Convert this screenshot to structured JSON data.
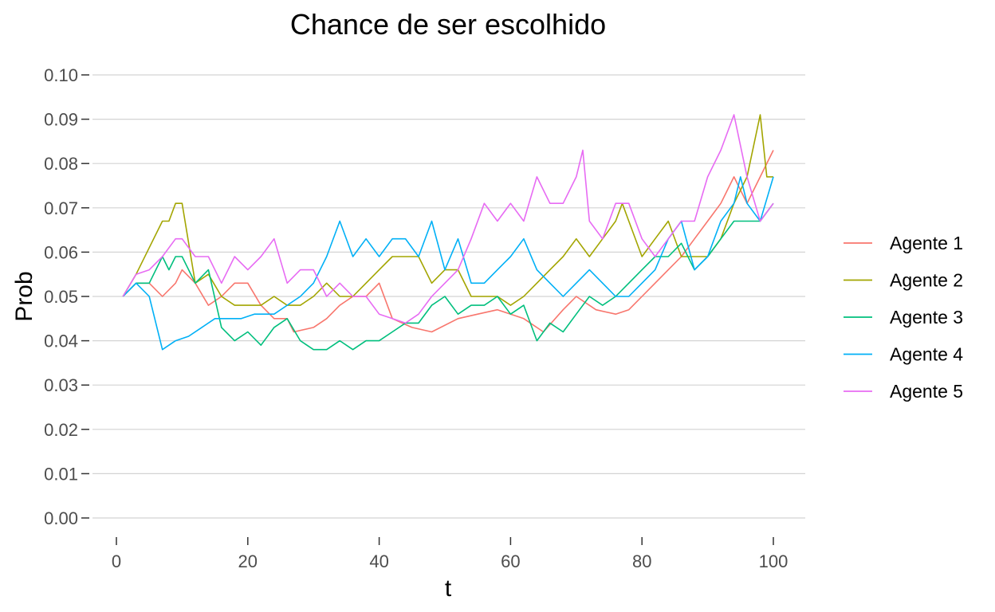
{
  "chart_data": {
    "type": "line",
    "title": "Chance de ser escolhido",
    "xlabel": "t",
    "ylabel": "Prob",
    "xlim": [
      0,
      100
    ],
    "ylim": [
      0,
      0.1
    ],
    "x_ticks": [
      0,
      20,
      40,
      60,
      80,
      100
    ],
    "x_tick_labels": [
      "0",
      "20",
      "40",
      "60",
      "80",
      "100"
    ],
    "y_ticks": [
      0,
      0.01,
      0.02,
      0.03,
      0.04,
      0.05,
      0.06,
      0.07,
      0.08,
      0.09,
      0.1
    ],
    "y_tick_labels": [
      "0.00",
      "0.01",
      "0.02",
      "0.03",
      "0.04",
      "0.05",
      "0.06",
      "0.07",
      "0.08",
      "0.09",
      "0.10"
    ],
    "grid": "horizontal",
    "legend_position": "right",
    "series": [
      {
        "name": "Agente 1",
        "color": "#F8766D",
        "points": [
          [
            1,
            0.05
          ],
          [
            3,
            0.053
          ],
          [
            5,
            0.053
          ],
          [
            7,
            0.05
          ],
          [
            9,
            0.053
          ],
          [
            10,
            0.056
          ],
          [
            12,
            0.053
          ],
          [
            14,
            0.048
          ],
          [
            16,
            0.05
          ],
          [
            18,
            0.053
          ],
          [
            20,
            0.053
          ],
          [
            22,
            0.048
          ],
          [
            24,
            0.045
          ],
          [
            26,
            0.045
          ],
          [
            27,
            0.042
          ],
          [
            30,
            0.043
          ],
          [
            32,
            0.045
          ],
          [
            34,
            0.048
          ],
          [
            36,
            0.05
          ],
          [
            38,
            0.05
          ],
          [
            40,
            0.053
          ],
          [
            42,
            0.045
          ],
          [
            45,
            0.043
          ],
          [
            48,
            0.042
          ],
          [
            52,
            0.045
          ],
          [
            55,
            0.046
          ],
          [
            58,
            0.047
          ],
          [
            62,
            0.045
          ],
          [
            65,
            0.042
          ],
          [
            68,
            0.047
          ],
          [
            70,
            0.05
          ],
          [
            73,
            0.047
          ],
          [
            76,
            0.046
          ],
          [
            78,
            0.047
          ],
          [
            80,
            0.05
          ],
          [
            82,
            0.053
          ],
          [
            84,
            0.056
          ],
          [
            86,
            0.059
          ],
          [
            88,
            0.063
          ],
          [
            90,
            0.067
          ],
          [
            92,
            0.071
          ],
          [
            94,
            0.077
          ],
          [
            96,
            0.071
          ],
          [
            98,
            0.077
          ],
          [
            100,
            0.083
          ]
        ]
      },
      {
        "name": "Agente 2",
        "color": "#A3A500",
        "points": [
          [
            1,
            0.05
          ],
          [
            3,
            0.055
          ],
          [
            5,
            0.061
          ],
          [
            7,
            0.067
          ],
          [
            8,
            0.067
          ],
          [
            9,
            0.071
          ],
          [
            10,
            0.071
          ],
          [
            12,
            0.053
          ],
          [
            14,
            0.055
          ],
          [
            16,
            0.05
          ],
          [
            18,
            0.048
          ],
          [
            20,
            0.048
          ],
          [
            22,
            0.048
          ],
          [
            24,
            0.05
          ],
          [
            26,
            0.048
          ],
          [
            28,
            0.048
          ],
          [
            30,
            0.05
          ],
          [
            32,
            0.053
          ],
          [
            34,
            0.05
          ],
          [
            36,
            0.05
          ],
          [
            38,
            0.053
          ],
          [
            40,
            0.056
          ],
          [
            42,
            0.059
          ],
          [
            44,
            0.059
          ],
          [
            46,
            0.059
          ],
          [
            48,
            0.053
          ],
          [
            50,
            0.056
          ],
          [
            52,
            0.056
          ],
          [
            54,
            0.05
          ],
          [
            56,
            0.05
          ],
          [
            58,
            0.05
          ],
          [
            60,
            0.048
          ],
          [
            62,
            0.05
          ],
          [
            64,
            0.053
          ],
          [
            66,
            0.056
          ],
          [
            68,
            0.059
          ],
          [
            70,
            0.063
          ],
          [
            72,
            0.059
          ],
          [
            74,
            0.063
          ],
          [
            76,
            0.067
          ],
          [
            77,
            0.071
          ],
          [
            78,
            0.067
          ],
          [
            80,
            0.059
          ],
          [
            82,
            0.063
          ],
          [
            84,
            0.067
          ],
          [
            86,
            0.059
          ],
          [
            88,
            0.059
          ],
          [
            90,
            0.059
          ],
          [
            92,
            0.063
          ],
          [
            94,
            0.071
          ],
          [
            96,
            0.077
          ],
          [
            98,
            0.091
          ],
          [
            99,
            0.077
          ],
          [
            100,
            0.077
          ]
        ]
      },
      {
        "name": "Agente 3",
        "color": "#00BF7D",
        "points": [
          [
            1,
            0.05
          ],
          [
            3,
            0.053
          ],
          [
            5,
            0.053
          ],
          [
            7,
            0.059
          ],
          [
            8,
            0.056
          ],
          [
            9,
            0.059
          ],
          [
            10,
            0.059
          ],
          [
            12,
            0.053
          ],
          [
            14,
            0.056
          ],
          [
            16,
            0.043
          ],
          [
            18,
            0.04
          ],
          [
            20,
            0.042
          ],
          [
            22,
            0.039
          ],
          [
            24,
            0.043
          ],
          [
            26,
            0.045
          ],
          [
            28,
            0.04
          ],
          [
            30,
            0.038
          ],
          [
            32,
            0.038
          ],
          [
            34,
            0.04
          ],
          [
            36,
            0.038
          ],
          [
            38,
            0.04
          ],
          [
            40,
            0.04
          ],
          [
            42,
            0.042
          ],
          [
            44,
            0.044
          ],
          [
            46,
            0.044
          ],
          [
            48,
            0.048
          ],
          [
            50,
            0.05
          ],
          [
            52,
            0.046
          ],
          [
            54,
            0.048
          ],
          [
            56,
            0.048
          ],
          [
            58,
            0.05
          ],
          [
            60,
            0.046
          ],
          [
            62,
            0.048
          ],
          [
            64,
            0.04
          ],
          [
            66,
            0.044
          ],
          [
            68,
            0.042
          ],
          [
            70,
            0.046
          ],
          [
            72,
            0.05
          ],
          [
            74,
            0.048
          ],
          [
            76,
            0.05
          ],
          [
            78,
            0.053
          ],
          [
            80,
            0.056
          ],
          [
            82,
            0.059
          ],
          [
            84,
            0.059
          ],
          [
            86,
            0.062
          ],
          [
            88,
            0.056
          ],
          [
            90,
            0.059
          ],
          [
            92,
            0.063
          ],
          [
            94,
            0.067
          ],
          [
            96,
            0.067
          ],
          [
            98,
            0.067
          ],
          [
            100,
            0.071
          ]
        ]
      },
      {
        "name": "Agente 4",
        "color": "#00B0F6",
        "points": [
          [
            1,
            0.05
          ],
          [
            3,
            0.053
          ],
          [
            5,
            0.05
          ],
          [
            7,
            0.038
          ],
          [
            9,
            0.04
          ],
          [
            11,
            0.041
          ],
          [
            13,
            0.043
          ],
          [
            15,
            0.045
          ],
          [
            17,
            0.045
          ],
          [
            19,
            0.045
          ],
          [
            21,
            0.046
          ],
          [
            24,
            0.046
          ],
          [
            26,
            0.048
          ],
          [
            28,
            0.05
          ],
          [
            30,
            0.053
          ],
          [
            32,
            0.059
          ],
          [
            34,
            0.067
          ],
          [
            36,
            0.059
          ],
          [
            38,
            0.063
          ],
          [
            40,
            0.059
          ],
          [
            42,
            0.063
          ],
          [
            44,
            0.063
          ],
          [
            46,
            0.059
          ],
          [
            48,
            0.067
          ],
          [
            50,
            0.056
          ],
          [
            52,
            0.063
          ],
          [
            54,
            0.053
          ],
          [
            56,
            0.053
          ],
          [
            58,
            0.056
          ],
          [
            60,
            0.059
          ],
          [
            62,
            0.063
          ],
          [
            64,
            0.056
          ],
          [
            66,
            0.053
          ],
          [
            68,
            0.05
          ],
          [
            70,
            0.053
          ],
          [
            72,
            0.056
          ],
          [
            74,
            0.053
          ],
          [
            76,
            0.05
          ],
          [
            78,
            0.05
          ],
          [
            80,
            0.053
          ],
          [
            82,
            0.056
          ],
          [
            84,
            0.063
          ],
          [
            86,
            0.067
          ],
          [
            88,
            0.056
          ],
          [
            90,
            0.059
          ],
          [
            92,
            0.067
          ],
          [
            94,
            0.071
          ],
          [
            95,
            0.077
          ],
          [
            96,
            0.071
          ],
          [
            98,
            0.067
          ],
          [
            100,
            0.077
          ]
        ]
      },
      {
        "name": "Agente 5",
        "color": "#E76BF3",
        "points": [
          [
            1,
            0.05
          ],
          [
            3,
            0.055
          ],
          [
            5,
            0.056
          ],
          [
            7,
            0.059
          ],
          [
            9,
            0.063
          ],
          [
            10,
            0.063
          ],
          [
            12,
            0.059
          ],
          [
            14,
            0.059
          ],
          [
            16,
            0.053
          ],
          [
            18,
            0.059
          ],
          [
            20,
            0.056
          ],
          [
            22,
            0.059
          ],
          [
            24,
            0.063
          ],
          [
            26,
            0.053
          ],
          [
            28,
            0.056
          ],
          [
            30,
            0.056
          ],
          [
            32,
            0.05
          ],
          [
            34,
            0.053
          ],
          [
            36,
            0.05
          ],
          [
            38,
            0.05
          ],
          [
            40,
            0.046
          ],
          [
            42,
            0.045
          ],
          [
            44,
            0.044
          ],
          [
            46,
            0.046
          ],
          [
            48,
            0.05
          ],
          [
            50,
            0.053
          ],
          [
            52,
            0.056
          ],
          [
            54,
            0.063
          ],
          [
            56,
            0.071
          ],
          [
            58,
            0.067
          ],
          [
            60,
            0.071
          ],
          [
            62,
            0.067
          ],
          [
            64,
            0.077
          ],
          [
            66,
            0.071
          ],
          [
            68,
            0.071
          ],
          [
            70,
            0.077
          ],
          [
            71,
            0.083
          ],
          [
            72,
            0.067
          ],
          [
            74,
            0.063
          ],
          [
            76,
            0.071
          ],
          [
            78,
            0.071
          ],
          [
            80,
            0.063
          ],
          [
            82,
            0.059
          ],
          [
            84,
            0.063
          ],
          [
            86,
            0.067
          ],
          [
            88,
            0.067
          ],
          [
            90,
            0.077
          ],
          [
            92,
            0.083
          ],
          [
            94,
            0.091
          ],
          [
            96,
            0.077
          ],
          [
            98,
            0.067
          ],
          [
            100,
            0.071
          ]
        ]
      }
    ]
  }
}
